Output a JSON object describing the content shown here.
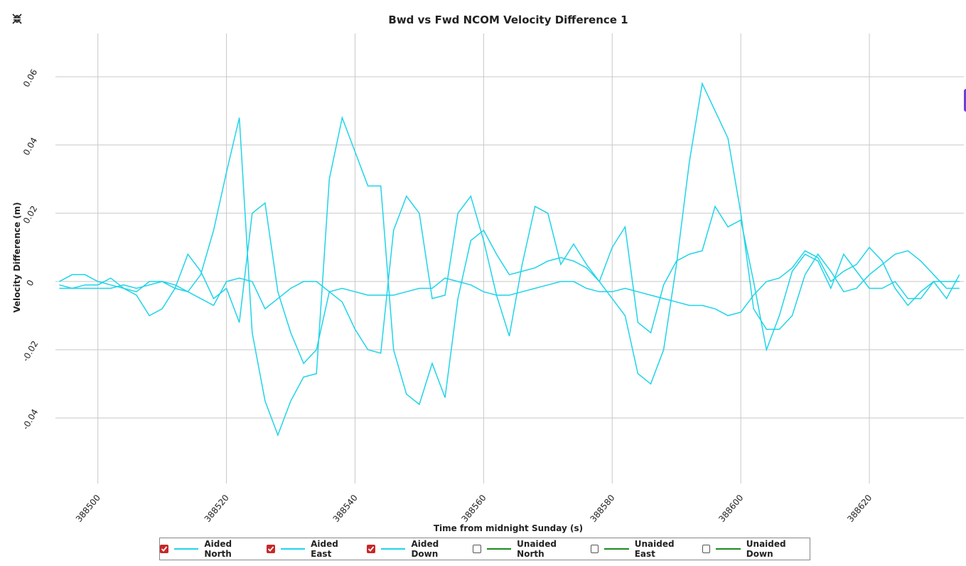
{
  "chart_data": {
    "type": "line",
    "title": "Bwd vs Fwd NCOM Velocity Difference 1",
    "xlabel": "Time from midnight Sunday (s)",
    "ylabel": "Velocity Difference (m)",
    "xlim": [
      388493.4,
      388634.7
    ],
    "ylim": [
      -0.0592,
      0.0727
    ],
    "xticks": [
      388500,
      388520,
      388540,
      388560,
      388580,
      388600,
      388620
    ],
    "yticks": [
      -0.04,
      -0.02,
      0,
      0.02,
      0.04,
      0.06
    ],
    "grid": true,
    "x": [
      388494,
      388496,
      388498,
      388500,
      388502,
      388504,
      388506,
      388508,
      388510,
      388512,
      388514,
      388516,
      388518,
      388520,
      388522,
      388524,
      388526,
      388528,
      388530,
      388532,
      388534,
      388536,
      388538,
      388540,
      388542,
      388544,
      388546,
      388548,
      388550,
      388552,
      388554,
      388556,
      388558,
      388560,
      388562,
      388564,
      388566,
      388568,
      388570,
      388572,
      388574,
      388576,
      388578,
      388580,
      388582,
      388584,
      388586,
      388588,
      388590,
      388592,
      388594,
      388596,
      388598,
      388600,
      388602,
      388604,
      388606,
      388608,
      388610,
      388612,
      388614,
      388616,
      388618,
      388620,
      388622,
      388624,
      388626,
      388628,
      388630,
      388632,
      388634
    ],
    "series": [
      {
        "name": "Aided North",
        "color": "#1fd4e8",
        "checked": true,
        "values": [
          -0.002,
          -0.002,
          -0.002,
          -0.002,
          -0.002,
          -0.001,
          -0.002,
          -0.001,
          0.0,
          -0.002,
          -0.003,
          0.002,
          0.015,
          0.032,
          0.048,
          -0.015,
          -0.035,
          -0.045,
          -0.035,
          -0.028,
          -0.027,
          0.03,
          0.048,
          0.038,
          0.028,
          0.028,
          -0.02,
          -0.033,
          -0.036,
          -0.024,
          -0.034,
          -0.005,
          0.012,
          0.015,
          0.008,
          0.002,
          0.003,
          0.004,
          0.006,
          0.007,
          0.006,
          0.004,
          0.0,
          -0.005,
          -0.01,
          -0.027,
          -0.03,
          -0.02,
          0.005,
          0.035,
          0.058,
          0.05,
          0.042,
          0.02,
          -0.008,
          -0.014,
          -0.014,
          -0.01,
          0.002,
          0.008,
          0.003,
          -0.003,
          -0.002,
          0.002,
          0.005,
          0.008,
          0.009,
          0.006,
          0.002,
          -0.002,
          -0.002
        ]
      },
      {
        "name": "Aided East",
        "color": "#1fd4e8",
        "checked": true,
        "values": [
          0.0,
          0.002,
          0.002,
          0.0,
          -0.001,
          -0.002,
          -0.004,
          -0.01,
          -0.008,
          -0.002,
          0.008,
          0.003,
          -0.005,
          -0.002,
          -0.012,
          0.02,
          0.023,
          -0.003,
          -0.015,
          -0.024,
          -0.02,
          -0.003,
          -0.006,
          -0.014,
          -0.02,
          -0.021,
          0.015,
          0.025,
          0.02,
          -0.005,
          -0.004,
          0.02,
          0.025,
          0.012,
          -0.004,
          -0.016,
          0.005,
          0.022,
          0.02,
          0.005,
          0.011,
          0.005,
          0.0,
          0.01,
          0.016,
          -0.012,
          -0.015,
          -0.001,
          0.006,
          0.008,
          0.009,
          0.022,
          0.016,
          0.018,
          0.0,
          -0.02,
          -0.01,
          0.003,
          0.008,
          0.006,
          -0.002,
          0.008,
          0.003,
          -0.002,
          -0.002,
          0.0,
          -0.005,
          -0.005,
          0.0,
          -0.005,
          0.002
        ]
      },
      {
        "name": "Aided Down",
        "color": "#1fd4e8",
        "checked": true,
        "values": [
          -0.001,
          -0.002,
          -0.001,
          -0.001,
          0.001,
          -0.002,
          -0.003,
          0.0,
          0.0,
          -0.001,
          -0.003,
          -0.005,
          -0.007,
          0.0,
          0.001,
          0.0,
          -0.008,
          -0.005,
          -0.002,
          0.0,
          0.0,
          -0.003,
          -0.002,
          -0.003,
          -0.004,
          -0.004,
          -0.004,
          -0.003,
          -0.002,
          -0.002,
          0.001,
          0.0,
          -0.001,
          -0.003,
          -0.004,
          -0.004,
          -0.003,
          -0.002,
          -0.001,
          0.0,
          0.0,
          -0.002,
          -0.003,
          -0.003,
          -0.002,
          -0.003,
          -0.004,
          -0.005,
          -0.006,
          -0.007,
          -0.007,
          -0.008,
          -0.01,
          -0.009,
          -0.004,
          0.0,
          0.001,
          0.004,
          0.009,
          0.007,
          0.0,
          0.003,
          0.005,
          0.01,
          0.006,
          -0.002,
          -0.007,
          -0.003,
          0.0,
          0.0,
          0.0
        ]
      },
      {
        "name": "Unaided North",
        "color": "#1a8a1a",
        "checked": false,
        "values": [
          null,
          null,
          null,
          null,
          null,
          null,
          null,
          null,
          null,
          null,
          null,
          null,
          null,
          null,
          null,
          null,
          null,
          null,
          null,
          null,
          null,
          null,
          null,
          null,
          null,
          null,
          null,
          null,
          null,
          null,
          null,
          null,
          null,
          null,
          null,
          null,
          null,
          null,
          null,
          null,
          null,
          null,
          null,
          null,
          null,
          null,
          null,
          null,
          null,
          null,
          null,
          null,
          null,
          null,
          null,
          null,
          null,
          null,
          null,
          null,
          null,
          null,
          null,
          null,
          null,
          null,
          null,
          null,
          null,
          null,
          null
        ]
      },
      {
        "name": "Unaided East",
        "color": "#1a8a1a",
        "checked": false,
        "values": [
          null,
          null,
          null,
          null,
          null,
          null,
          null,
          null,
          null,
          null,
          null,
          null,
          null,
          null,
          null,
          null,
          null,
          null,
          null,
          null,
          null,
          null,
          null,
          null,
          null,
          null,
          null,
          null,
          null,
          null,
          null,
          null,
          null,
          null,
          null,
          null,
          null,
          null,
          null,
          null,
          null,
          null,
          null,
          null,
          null,
          null,
          null,
          null,
          null,
          null,
          null,
          null,
          null,
          null,
          null,
          null,
          null,
          null,
          null,
          null,
          null,
          null,
          null,
          null,
          null,
          null,
          null,
          null,
          null,
          null,
          null
        ]
      },
      {
        "name": "Unaided Down",
        "color": "#1a8a1a",
        "checked": false,
        "values": [
          null,
          null,
          null,
          null,
          null,
          null,
          null,
          null,
          null,
          null,
          null,
          null,
          null,
          null,
          null,
          null,
          null,
          null,
          null,
          null,
          null,
          null,
          null,
          null,
          null,
          null,
          null,
          null,
          null,
          null,
          null,
          null,
          null,
          null,
          null,
          null,
          null,
          null,
          null,
          null,
          null,
          null,
          null,
          null,
          null,
          null,
          null,
          null,
          null,
          null,
          null,
          null,
          null,
          null,
          null,
          null,
          null,
          null,
          null,
          null,
          null,
          null,
          null,
          null,
          null,
          null,
          null,
          null,
          null,
          null,
          null
        ]
      }
    ]
  }
}
